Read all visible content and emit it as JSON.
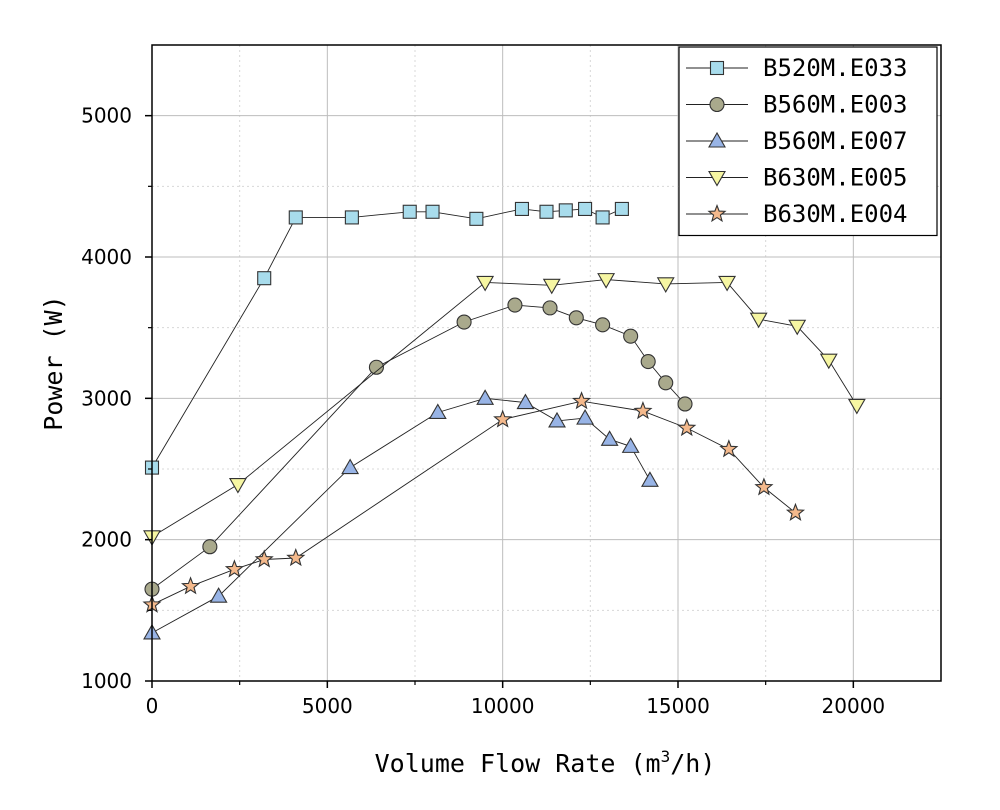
{
  "chart_data": {
    "type": "line",
    "title": "",
    "xlabel": "Volume Flow Rate (m",
    "xlabel_sup": "3",
    "xlabel_end": "/h)",
    "ylabel": "Power (W)",
    "xlim": [
      0,
      22500
    ],
    "ylim": [
      1000,
      5500
    ],
    "x_ticks": [
      0,
      5000,
      10000,
      15000,
      20000
    ],
    "x_tick_labels": [
      "0",
      "5000",
      "10000",
      "15000",
      "20000"
    ],
    "y_ticks": [
      1000,
      2000,
      3000,
      4000,
      5000
    ],
    "y_tick_labels": [
      "1000",
      "2000",
      "3000",
      "4000",
      "5000"
    ],
    "grid": true,
    "legend_position": "top-right",
    "series": [
      {
        "name": "B520M.E033",
        "marker": "square",
        "color": "#a8dcec",
        "x": [
          0,
          3200,
          4100,
          5700,
          7350,
          8000,
          9250,
          10550,
          11250,
          11800,
          12350,
          12850,
          13400
        ],
        "y": [
          2510,
          3850,
          4280,
          4280,
          4320,
          4320,
          4270,
          4340,
          4320,
          4330,
          4340,
          4280,
          4340
        ]
      },
      {
        "name": "B560M.E003",
        "marker": "circle",
        "color": "#a9a98c",
        "x": [
          0,
          1650,
          6400,
          8900,
          10350,
          11350,
          12100,
          12850,
          13650,
          14150,
          14650,
          15200
        ],
        "y": [
          1650,
          1950,
          3220,
          3540,
          3660,
          3640,
          3570,
          3520,
          3440,
          3260,
          3110,
          2960
        ]
      },
      {
        "name": "B560M.E007",
        "marker": "triangle-up",
        "color": "#98b4e6",
        "x": [
          0,
          1900,
          5650,
          8150,
          9500,
          10650,
          11550,
          12350,
          13050,
          13650,
          14200
        ],
        "y": [
          1340,
          1600,
          2510,
          2900,
          3000,
          2970,
          2840,
          2860,
          2710,
          2660,
          2420
        ]
      },
      {
        "name": "B630M.E005",
        "marker": "triangle-down",
        "color": "#f6f6a2",
        "x": [
          0,
          2450,
          9500,
          11400,
          12950,
          14650,
          16400,
          17300,
          18400,
          19300,
          20100
        ],
        "y": [
          2020,
          2390,
          3820,
          3800,
          3840,
          3810,
          3820,
          3560,
          3510,
          3270,
          2950
        ]
      },
      {
        "name": "B630M.E004",
        "marker": "star",
        "color": "#f4b98c",
        "x": [
          0,
          1100,
          2350,
          3200,
          4100,
          10000,
          12250,
          14000,
          15250,
          16450,
          17450,
          18350
        ],
        "y": [
          1540,
          1670,
          1790,
          1860,
          1870,
          2850,
          2980,
          2910,
          2790,
          2640,
          2370,
          2190
        ]
      }
    ]
  }
}
